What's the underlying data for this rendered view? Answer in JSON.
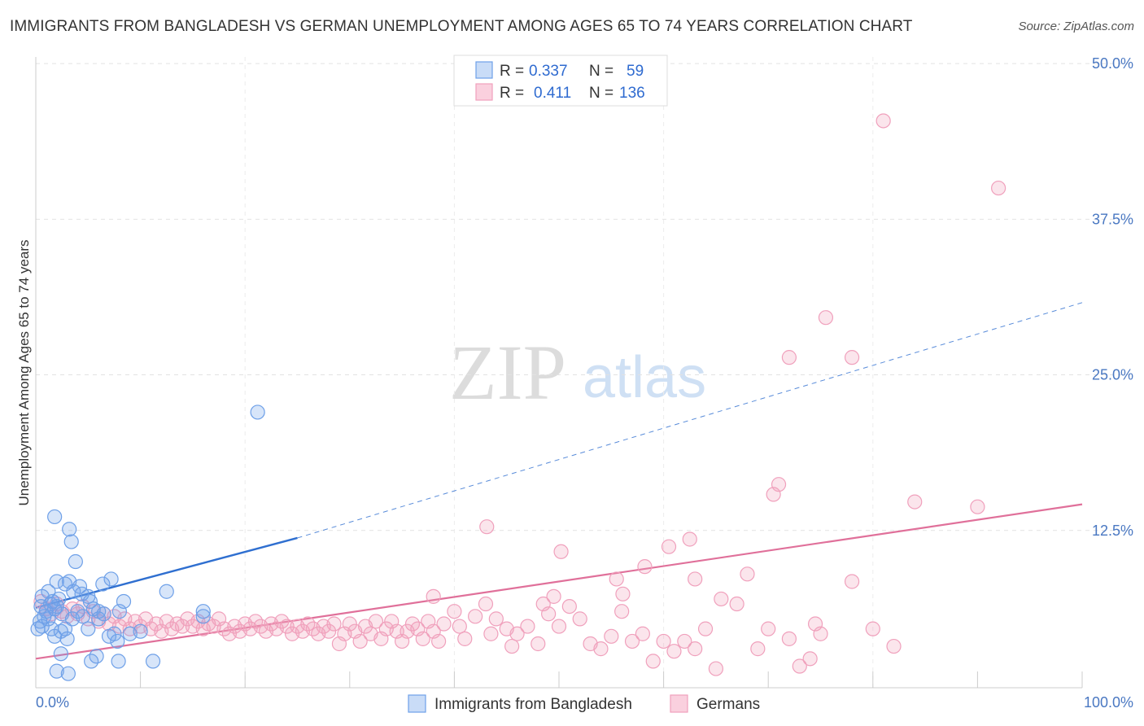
{
  "title": "IMMIGRANTS FROM BANGLADESH VS GERMAN UNEMPLOYMENT AMONG AGES 65 TO 74 YEARS CORRELATION CHART",
  "source": "Source: ZipAtlas.com",
  "watermark": {
    "zip": "ZIP",
    "atlas": "atlas"
  },
  "legend": {
    "r_label": "R =",
    "n_label": "N =",
    "rows": [
      {
        "r": "0.337",
        "n": "59"
      },
      {
        "r": "0.411",
        "n": "136"
      }
    ]
  },
  "chart_data": {
    "type": "scatter",
    "xlabel": "",
    "ylabel": "Unemployment Among Ages 65 to 74 years",
    "xlim": [
      0,
      100
    ],
    "ylim": [
      0,
      50
    ],
    "x_tick_labels": [
      "0.0%",
      "100.0%"
    ],
    "y_ticks": [
      12.5,
      25.0,
      37.5,
      50.0
    ],
    "y_tick_labels": [
      "12.5%",
      "25.0%",
      "37.5%",
      "50.0%"
    ],
    "grid": true,
    "legend_position": "bottom",
    "colors": {
      "blue": "#6ea0e8",
      "blue_line": "#2f6fd0",
      "pink": "#f0a0bc",
      "pink_line": "#e0709a"
    },
    "series": [
      {
        "name": "Immigrants from Bangladesh",
        "color": "#6ea0e8",
        "trend": {
          "x": [
            0,
            25
          ],
          "y": [
            6.3,
            11.9
          ],
          "dashed_to": [
            100,
            30.8
          ]
        },
        "points": [
          [
            0.2,
            4.6
          ],
          [
            0.4,
            5.2
          ],
          [
            0.6,
            4.8
          ],
          [
            0.8,
            5.6
          ],
          [
            0.5,
            6.4
          ],
          [
            1.0,
            6.0
          ],
          [
            1.2,
            5.4
          ],
          [
            1.4,
            6.6
          ],
          [
            1.6,
            6.8
          ],
          [
            1.8,
            6.2
          ],
          [
            0.6,
            7.2
          ],
          [
            1.2,
            7.6
          ],
          [
            2.0,
            6.4
          ],
          [
            2.2,
            7.0
          ],
          [
            2.5,
            5.8
          ],
          [
            1.5,
            4.6
          ],
          [
            1.8,
            4.0
          ],
          [
            2.4,
            4.4
          ],
          [
            2.8,
            4.6
          ],
          [
            3.0,
            3.8
          ],
          [
            3.5,
            5.4
          ],
          [
            4.0,
            6.0
          ],
          [
            4.5,
            5.6
          ],
          [
            5.0,
            4.6
          ],
          [
            5.5,
            6.2
          ],
          [
            6.0,
            5.4
          ],
          [
            6.5,
            5.8
          ],
          [
            7.0,
            4.0
          ],
          [
            7.5,
            4.2
          ],
          [
            8.0,
            6.0
          ],
          [
            2.0,
            8.4
          ],
          [
            2.8,
            8.2
          ],
          [
            3.6,
            7.6
          ],
          [
            4.4,
            7.4
          ],
          [
            5.2,
            6.8
          ],
          [
            6.0,
            6.0
          ],
          [
            3.2,
            8.4
          ],
          [
            4.2,
            8.0
          ],
          [
            5.0,
            7.2
          ],
          [
            6.4,
            8.2
          ],
          [
            7.2,
            8.6
          ],
          [
            8.4,
            6.8
          ],
          [
            9.0,
            4.2
          ],
          [
            10.0,
            4.4
          ],
          [
            7.8,
            3.6
          ],
          [
            3.8,
            10.0
          ],
          [
            3.4,
            11.6
          ],
          [
            3.2,
            12.6
          ],
          [
            1.8,
            13.6
          ],
          [
            16.0,
            6.0
          ],
          [
            21.2,
            22.0
          ],
          [
            16.0,
            5.6
          ],
          [
            12.5,
            7.6
          ],
          [
            2.4,
            2.6
          ],
          [
            2.0,
            1.2
          ],
          [
            3.1,
            1.0
          ],
          [
            5.3,
            2.0
          ],
          [
            5.8,
            2.4
          ],
          [
            7.9,
            2.0
          ],
          [
            11.2,
            2.0
          ]
        ]
      },
      {
        "name": "Germans",
        "color": "#f0a0bc",
        "trend": {
          "x": [
            0,
            100
          ],
          "y": [
            2.2,
            14.6
          ]
        },
        "points": [
          [
            0.5,
            6.8
          ],
          [
            1.0,
            6.2
          ],
          [
            1.5,
            5.8
          ],
          [
            2.0,
            6.6
          ],
          [
            2.5,
            6.0
          ],
          [
            3.0,
            5.6
          ],
          [
            3.5,
            6.2
          ],
          [
            4.0,
            5.8
          ],
          [
            4.5,
            6.4
          ],
          [
            5.0,
            5.4
          ],
          [
            5.5,
            6.0
          ],
          [
            6.0,
            5.2
          ],
          [
            6.5,
            5.8
          ],
          [
            7.0,
            5.0
          ],
          [
            7.5,
            5.6
          ],
          [
            8.0,
            4.8
          ],
          [
            8.5,
            5.4
          ],
          [
            9.0,
            4.6
          ],
          [
            9.5,
            5.2
          ],
          [
            10.0,
            4.8
          ],
          [
            10.5,
            5.4
          ],
          [
            11.0,
            4.6
          ],
          [
            11.5,
            5.0
          ],
          [
            12.0,
            4.4
          ],
          [
            12.5,
            5.2
          ],
          [
            13.0,
            4.6
          ],
          [
            13.5,
            5.0
          ],
          [
            14.0,
            4.8
          ],
          [
            14.5,
            5.4
          ],
          [
            15.0,
            4.8
          ],
          [
            15.5,
            5.2
          ],
          [
            16.0,
            4.6
          ],
          [
            16.5,
            5.0
          ],
          [
            17.0,
            4.8
          ],
          [
            17.5,
            5.4
          ],
          [
            18.0,
            4.6
          ],
          [
            18.5,
            4.2
          ],
          [
            19.0,
            4.8
          ],
          [
            19.5,
            4.4
          ],
          [
            20.0,
            5.0
          ],
          [
            20.5,
            4.6
          ],
          [
            21.0,
            5.2
          ],
          [
            21.5,
            4.8
          ],
          [
            22.0,
            4.4
          ],
          [
            22.5,
            5.0
          ],
          [
            23.0,
            4.6
          ],
          [
            23.5,
            5.2
          ],
          [
            24.0,
            4.8
          ],
          [
            24.5,
            4.2
          ],
          [
            25.0,
            4.8
          ],
          [
            25.5,
            4.4
          ],
          [
            26.0,
            5.0
          ],
          [
            26.5,
            4.6
          ],
          [
            27.0,
            4.2
          ],
          [
            27.5,
            4.8
          ],
          [
            28.0,
            4.4
          ],
          [
            28.5,
            5.0
          ],
          [
            29.0,
            3.4
          ],
          [
            29.5,
            4.2
          ],
          [
            30.0,
            5.0
          ],
          [
            30.5,
            4.4
          ],
          [
            31.0,
            3.6
          ],
          [
            31.5,
            4.8
          ],
          [
            32.0,
            4.2
          ],
          [
            32.5,
            5.2
          ],
          [
            33.0,
            3.8
          ],
          [
            33.5,
            4.6
          ],
          [
            34.0,
            5.2
          ],
          [
            34.5,
            4.4
          ],
          [
            35.0,
            3.6
          ],
          [
            35.5,
            4.4
          ],
          [
            36.0,
            5.0
          ],
          [
            36.5,
            4.6
          ],
          [
            37.0,
            3.8
          ],
          [
            37.5,
            5.2
          ],
          [
            38.0,
            4.4
          ],
          [
            38.5,
            3.6
          ],
          [
            39.0,
            5.0
          ],
          [
            40.0,
            6.0
          ],
          [
            40.5,
            4.8
          ],
          [
            41.0,
            3.8
          ],
          [
            42.0,
            5.6
          ],
          [
            43.0,
            6.6
          ],
          [
            43.5,
            4.2
          ],
          [
            44.0,
            5.4
          ],
          [
            45.0,
            4.6
          ],
          [
            45.5,
            3.2
          ],
          [
            46.0,
            4.2
          ],
          [
            47.0,
            4.8
          ],
          [
            48.0,
            3.4
          ],
          [
            48.5,
            6.6
          ],
          [
            49.0,
            5.8
          ],
          [
            49.5,
            7.2
          ],
          [
            50.0,
            4.8
          ],
          [
            51.0,
            6.4
          ],
          [
            52.0,
            5.4
          ],
          [
            53.0,
            3.4
          ],
          [
            54.0,
            3.0
          ],
          [
            55.0,
            4.0
          ],
          [
            56.0,
            6.0
          ],
          [
            57.0,
            3.6
          ],
          [
            58.0,
            4.2
          ],
          [
            59.0,
            2.0
          ],
          [
            60.0,
            3.6
          ],
          [
            61.0,
            2.8
          ],
          [
            62.0,
            3.6
          ],
          [
            63.0,
            3.0
          ],
          [
            64.0,
            4.6
          ],
          [
            65.0,
            1.4
          ],
          [
            67.0,
            6.6
          ],
          [
            69.0,
            3.0
          ],
          [
            70.0,
            4.6
          ],
          [
            72.0,
            3.8
          ],
          [
            73.0,
            1.6
          ],
          [
            74.0,
            2.2
          ],
          [
            74.5,
            5.0
          ],
          [
            75.0,
            4.2
          ],
          [
            78.0,
            8.4
          ],
          [
            80.0,
            4.6
          ],
          [
            82.0,
            3.2
          ],
          [
            43.1,
            12.8
          ],
          [
            50.2,
            10.8
          ],
          [
            55.5,
            8.6
          ],
          [
            58.2,
            9.6
          ],
          [
            56.1,
            7.4
          ],
          [
            60.5,
            11.2
          ],
          [
            62.5,
            11.8
          ],
          [
            63.0,
            8.6
          ],
          [
            65.5,
            7.0
          ],
          [
            68.0,
            9.0
          ],
          [
            70.5,
            15.4
          ],
          [
            71.0,
            16.2
          ],
          [
            72.0,
            26.4
          ],
          [
            75.5,
            29.6
          ],
          [
            78.0,
            26.4
          ],
          [
            81.0,
            45.4
          ],
          [
            92.0,
            40.0
          ],
          [
            90.0,
            14.4
          ],
          [
            84.0,
            14.8
          ],
          [
            38.0,
            7.2
          ]
        ]
      }
    ]
  },
  "bottom_legend": [
    {
      "label": "Immigrants from Bangladesh"
    },
    {
      "label": "Germans"
    }
  ]
}
